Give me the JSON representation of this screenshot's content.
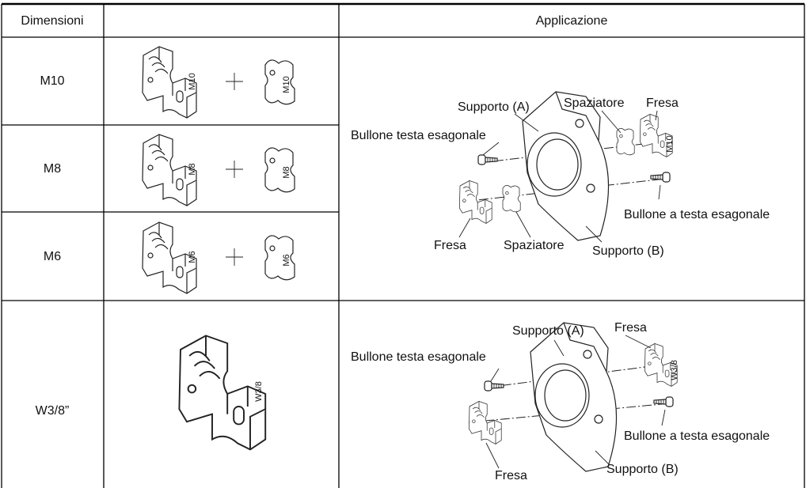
{
  "table": {
    "header": [
      "Dimensioni",
      "Applicazione"
    ],
    "rows": [
      {
        "size": "M10",
        "cutter_mark": "M10",
        "spacer_mark": "M10"
      },
      {
        "size": "M8",
        "cutter_mark": "M8",
        "spacer_mark": "M8"
      },
      {
        "size": "M6",
        "cutter_mark": "M6",
        "spacer_mark": "M6"
      },
      {
        "size": "W3/8”",
        "cutter_mark": "W3/8"
      }
    ]
  },
  "diagrams": [
    {
      "labels": [
        "Supporto (A)",
        "Spaziatore",
        "Fresa",
        "Bullone testa esagonale",
        "Bullone a testa esagonale",
        "Fresa",
        "Spaziatore",
        "Supporto (B)"
      ],
      "cutter_mark": "M10"
    },
    {
      "labels": [
        "Supporto (A)",
        "Fresa",
        "Bullone testa esagonale",
        "Bullone a testa esagonale",
        "Fresa",
        "Supporto (B)"
      ],
      "cutter_mark": "W3/8"
    }
  ]
}
